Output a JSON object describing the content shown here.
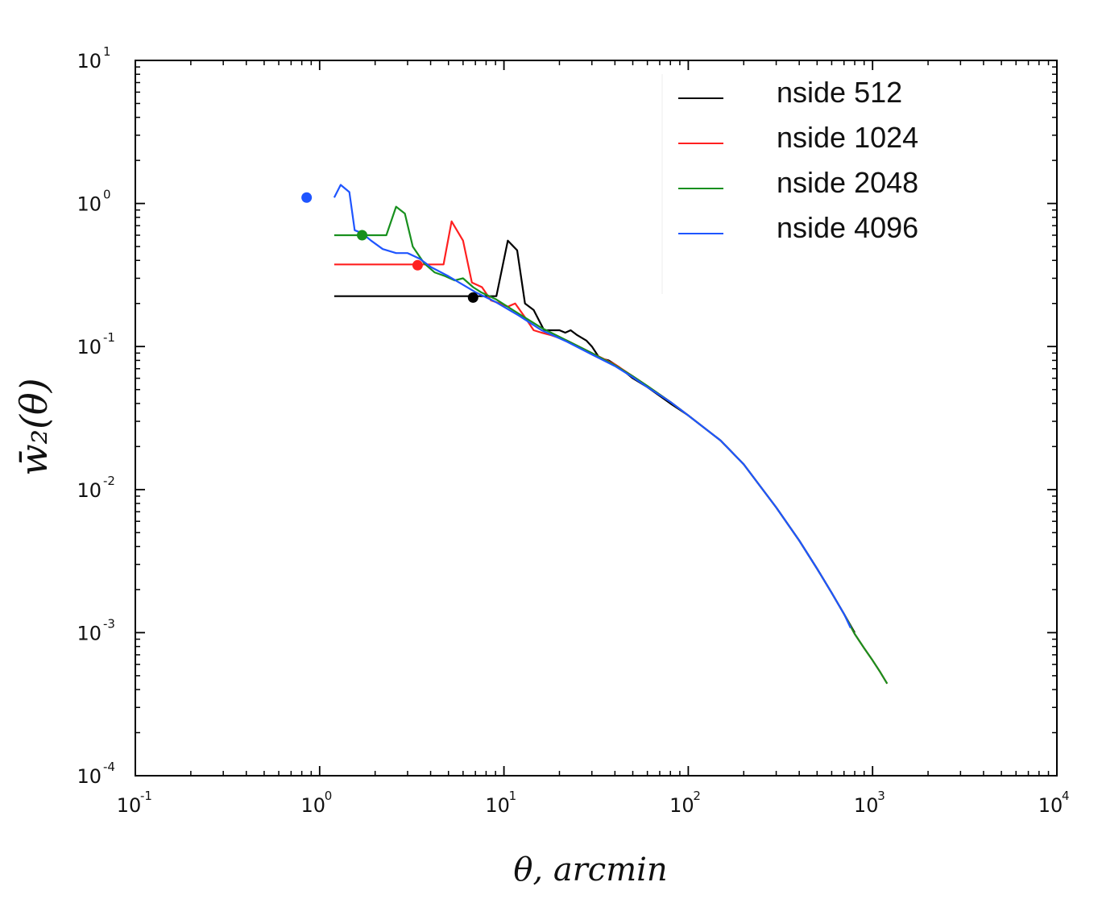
{
  "chart_data": {
    "type": "line",
    "title": "",
    "xlabel": "θ, arcmin",
    "ylabel": "w̄₂(θ)",
    "xscale": "log",
    "yscale": "log",
    "xlim": [
      0.1,
      10000
    ],
    "ylim": [
      0.0001,
      10
    ],
    "x_ticks": [
      {
        "value": 0.1,
        "base": "10",
        "exp": "-1"
      },
      {
        "value": 1,
        "base": "10",
        "exp": "0"
      },
      {
        "value": 10,
        "base": "10",
        "exp": "1"
      },
      {
        "value": 100,
        "base": "10",
        "exp": "2"
      },
      {
        "value": 1000,
        "base": "10",
        "exp": "3"
      },
      {
        "value": 10000,
        "base": "10",
        "exp": "4"
      }
    ],
    "y_ticks": [
      {
        "value": 0.0001,
        "base": "10",
        "exp": "-4"
      },
      {
        "value": 0.001,
        "base": "10",
        "exp": "-3"
      },
      {
        "value": 0.01,
        "base": "10",
        "exp": "-2"
      },
      {
        "value": 0.1,
        "base": "10",
        "exp": "-1"
      },
      {
        "value": 1,
        "base": "10",
        "exp": "0"
      },
      {
        "value": 10,
        "base": "10",
        "exp": "1"
      }
    ],
    "legend_position": "top-right",
    "series": [
      {
        "name": "nside 512",
        "color": "#000000",
        "marker": {
          "x": 6.8,
          "y": 0.22
        },
        "points": [
          [
            1.2,
            0.225
          ],
          [
            9.1,
            0.225
          ],
          [
            10.5,
            0.55
          ],
          [
            11.8,
            0.47
          ],
          [
            13,
            0.2
          ],
          [
            14.5,
            0.18
          ],
          [
            16.5,
            0.13
          ],
          [
            18,
            0.13
          ],
          [
            20,
            0.13
          ],
          [
            21.5,
            0.125
          ],
          [
            23,
            0.13
          ],
          [
            25,
            0.12
          ],
          [
            28,
            0.11
          ],
          [
            30,
            0.1
          ],
          [
            33,
            0.083
          ],
          [
            37,
            0.08
          ],
          [
            42,
            0.072
          ],
          [
            50,
            0.06
          ],
          [
            60,
            0.052
          ],
          [
            80,
            0.04
          ],
          [
            100,
            0.033
          ],
          [
            150,
            0.022
          ],
          [
            200,
            0.015
          ],
          [
            300,
            0.0075
          ],
          [
            400,
            0.0044
          ],
          [
            500,
            0.0028
          ],
          [
            600,
            0.0019
          ],
          [
            700,
            0.00135
          ],
          [
            800,
            0.001
          ]
        ]
      },
      {
        "name": "nside 1024",
        "color": "#ff2020",
        "marker": {
          "x": 3.4,
          "y": 0.37
        },
        "points": [
          [
            1.2,
            0.375
          ],
          [
            4.7,
            0.375
          ],
          [
            5.2,
            0.75
          ],
          [
            6.0,
            0.55
          ],
          [
            6.7,
            0.28
          ],
          [
            7.6,
            0.26
          ],
          [
            8.5,
            0.21
          ],
          [
            9.5,
            0.2
          ],
          [
            10.5,
            0.19
          ],
          [
            11.5,
            0.2
          ],
          [
            13,
            0.16
          ],
          [
            14.5,
            0.13
          ],
          [
            16,
            0.125
          ],
          [
            18,
            0.12
          ],
          [
            22,
            0.11
          ],
          [
            30,
            0.09
          ],
          [
            40,
            0.075
          ],
          [
            50,
            0.062
          ],
          [
            60,
            0.053
          ],
          [
            80,
            0.041
          ],
          [
            100,
            0.033
          ],
          [
            150,
            0.022
          ],
          [
            200,
            0.015
          ],
          [
            300,
            0.0075
          ],
          [
            400,
            0.0044
          ],
          [
            500,
            0.0028
          ],
          [
            600,
            0.0019
          ],
          [
            700,
            0.00135
          ],
          [
            800,
            0.00098
          ],
          [
            900,
            0.00078
          ],
          [
            1000,
            0.00064
          ],
          [
            1100,
            0.00053
          ],
          [
            1200,
            0.00044
          ]
        ]
      },
      {
        "name": "nside 2048",
        "color": "#18901e",
        "marker": {
          "x": 1.7,
          "y": 0.6
        },
        "points": [
          [
            1.2,
            0.6
          ],
          [
            2.3,
            0.6
          ],
          [
            2.6,
            0.95
          ],
          [
            2.9,
            0.85
          ],
          [
            3.2,
            0.5
          ],
          [
            3.7,
            0.38
          ],
          [
            4.2,
            0.33
          ],
          [
            4.8,
            0.31
          ],
          [
            5.4,
            0.29
          ],
          [
            6.0,
            0.3
          ],
          [
            6.8,
            0.26
          ],
          [
            7.5,
            0.24
          ],
          [
            9,
            0.215
          ],
          [
            12,
            0.17
          ],
          [
            16,
            0.135
          ],
          [
            22,
            0.11
          ],
          [
            30,
            0.09
          ],
          [
            40,
            0.074
          ],
          [
            50,
            0.062
          ],
          [
            60,
            0.053
          ],
          [
            80,
            0.041
          ],
          [
            100,
            0.033
          ],
          [
            150,
            0.022
          ],
          [
            200,
            0.015
          ],
          [
            300,
            0.0075
          ],
          [
            400,
            0.0044
          ],
          [
            500,
            0.0028
          ],
          [
            600,
            0.0019
          ],
          [
            700,
            0.00135
          ],
          [
            800,
            0.00098
          ],
          [
            900,
            0.00078
          ],
          [
            1000,
            0.00064
          ],
          [
            1100,
            0.00053
          ],
          [
            1200,
            0.00044
          ]
        ]
      },
      {
        "name": "nside 4096",
        "color": "#1f55ff",
        "marker": {
          "x": 0.85,
          "y": 1.1
        },
        "points": [
          [
            1.2,
            1.1
          ],
          [
            1.3,
            1.35
          ],
          [
            1.45,
            1.2
          ],
          [
            1.55,
            0.65
          ],
          [
            1.7,
            0.62
          ],
          [
            1.9,
            0.55
          ],
          [
            2.2,
            0.48
          ],
          [
            2.6,
            0.45
          ],
          [
            3.0,
            0.45
          ],
          [
            3.5,
            0.41
          ],
          [
            4.0,
            0.36
          ],
          [
            5,
            0.31
          ],
          [
            6,
            0.27
          ],
          [
            7,
            0.24
          ],
          [
            9,
            0.205
          ],
          [
            12,
            0.165
          ],
          [
            16,
            0.13
          ],
          [
            22,
            0.108
          ],
          [
            30,
            0.088
          ],
          [
            40,
            0.073
          ],
          [
            50,
            0.061
          ],
          [
            60,
            0.052
          ],
          [
            80,
            0.041
          ],
          [
            100,
            0.033
          ],
          [
            150,
            0.022
          ],
          [
            200,
            0.015
          ],
          [
            300,
            0.0075
          ],
          [
            400,
            0.0044
          ],
          [
            500,
            0.0028
          ],
          [
            600,
            0.0019
          ],
          [
            700,
            0.00135
          ],
          [
            760,
            0.00108
          ]
        ]
      }
    ]
  }
}
